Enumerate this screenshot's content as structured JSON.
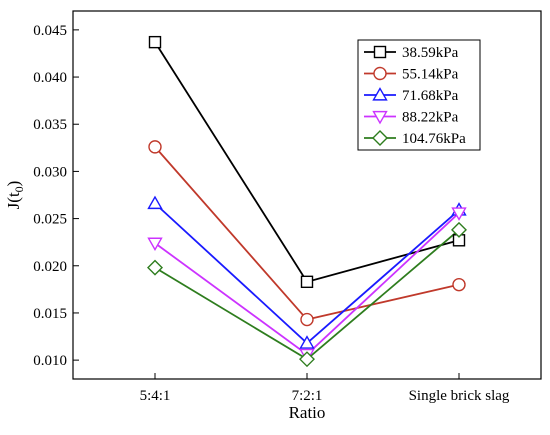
{
  "chart_data": {
    "type": "line",
    "xlabel": "Ratio",
    "ylabel": "J(t",
    "ylabel_sub": "0",
    "ylabel_close": ")",
    "categories": [
      "5:4:1",
      "7:2:1",
      "Single brick slag"
    ],
    "ylim": [
      0.008,
      0.047
    ],
    "yticks": [
      0.01,
      0.015,
      0.02,
      0.025,
      0.03,
      0.035,
      0.04,
      0.045
    ],
    "ytick_labels": [
      "0.010",
      "0.015",
      "0.020",
      "0.025",
      "0.030",
      "0.035",
      "0.040",
      "0.045"
    ],
    "grid": false,
    "legend_position": "top-right",
    "series": [
      {
        "name": "38.59kPa",
        "marker": "square",
        "color": "#000000",
        "values": [
          0.0437,
          0.0183,
          0.0227
        ]
      },
      {
        "name": "55.14kPa",
        "marker": "circle",
        "color": "#c0392b",
        "values": [
          0.0326,
          0.0143,
          0.018
        ]
      },
      {
        "name": "71.68kPa",
        "marker": "triangle-up",
        "color": "#1a1aff",
        "values": [
          0.0266,
          0.0118,
          0.0259
        ]
      },
      {
        "name": "88.22kPa",
        "marker": "triangle-down",
        "color": "#cc33ff",
        "values": [
          0.0224,
          0.0106,
          0.0256
        ]
      },
      {
        "name": "104.76kPa",
        "marker": "diamond",
        "color": "#2e7d1e",
        "values": [
          0.0198,
          0.0101,
          0.0238
        ]
      }
    ]
  }
}
